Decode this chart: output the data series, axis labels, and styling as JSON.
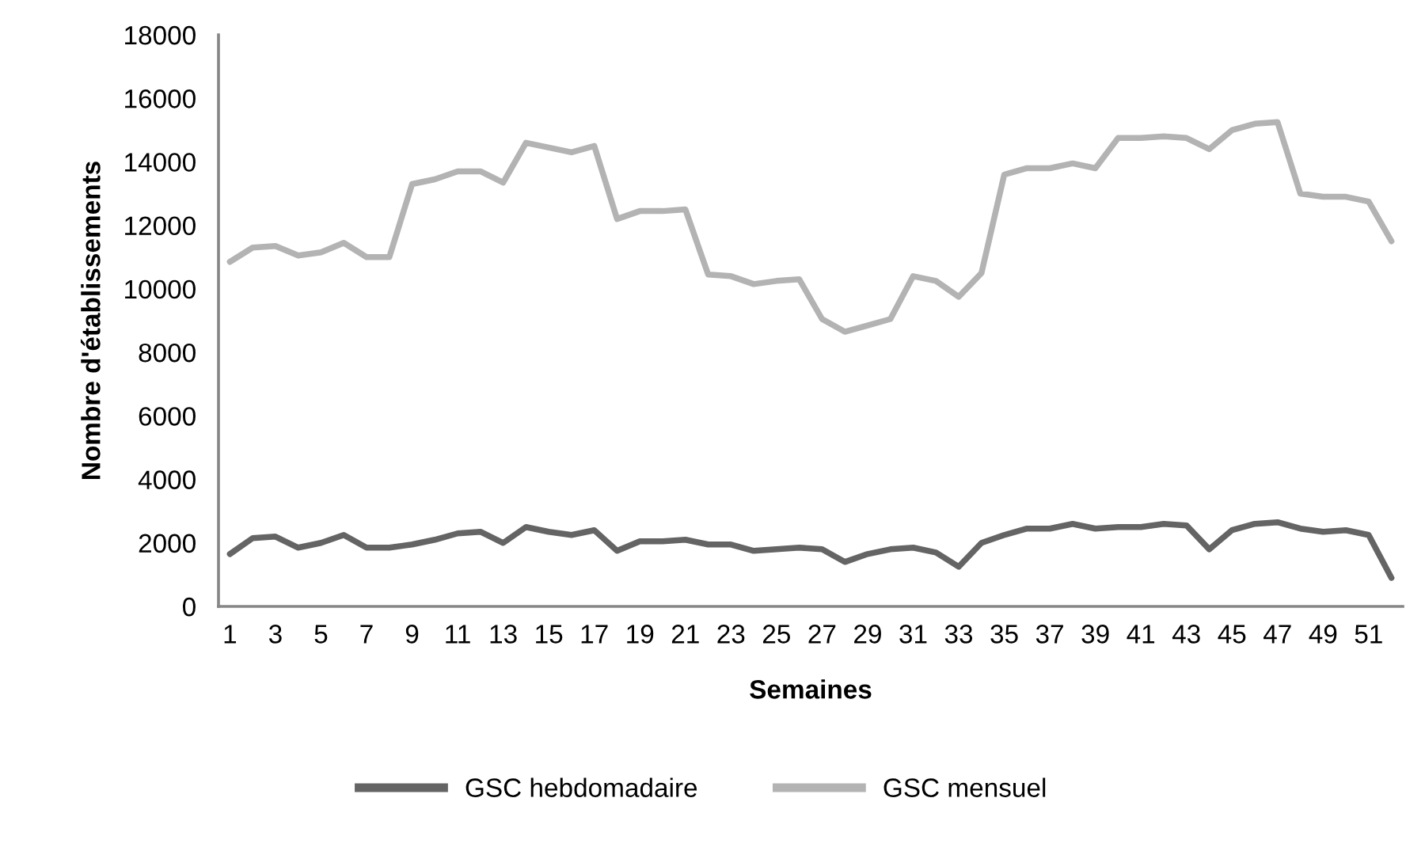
{
  "chart_data": {
    "type": "line",
    "xlabel": "Semaines",
    "ylabel": "Nombre d'établissements",
    "categories": [
      "1",
      null,
      "3",
      null,
      "5",
      null,
      "7",
      null,
      "9",
      null,
      "11",
      null,
      "13",
      null,
      "15",
      null,
      "17",
      null,
      "19",
      null,
      "21",
      null,
      "23",
      null,
      "25",
      null,
      "27",
      null,
      "29",
      null,
      "31",
      null,
      "33",
      null,
      "35",
      null,
      "37",
      null,
      "39",
      null,
      "41",
      null,
      "43",
      null,
      "45",
      null,
      "47",
      null,
      "49",
      null,
      "51",
      null
    ],
    "series": [
      {
        "name": "GSC hebdomadaire",
        "color": "#646464",
        "values": [
          1650,
          2150,
          2200,
          1850,
          2000,
          2250,
          1850,
          1850,
          1950,
          2100,
          2300,
          2350,
          2000,
          2500,
          2350,
          2250,
          2400,
          1750,
          2050,
          2050,
          2100,
          1950,
          1950,
          1750,
          1800,
          1850,
          1800,
          1400,
          1650,
          1800,
          1850,
          1700,
          1250,
          2000,
          2250,
          2450,
          2450,
          2600,
          2450,
          2500,
          2500,
          2600,
          2550,
          1800,
          2400,
          2600,
          2650,
          2450,
          2350,
          2400,
          2250,
          900
        ]
      },
      {
        "name": "GSC mensuel",
        "color": "#b3b3b3",
        "values": [
          10850,
          11300,
          11350,
          11050,
          11150,
          11450,
          11000,
          11000,
          13300,
          13450,
          13700,
          13700,
          13350,
          14600,
          14450,
          14300,
          14500,
          12200,
          12450,
          12450,
          12500,
          10450,
          10400,
          10150,
          10250,
          10300,
          9050,
          8650,
          8850,
          9050,
          10400,
          10250,
          9750,
          10500,
          13600,
          13800,
          13800,
          13950,
          13800,
          14750,
          14750,
          14800,
          14750,
          14400,
          15000,
          15200,
          15250,
          13000,
          12900,
          12900,
          12750,
          11500
        ]
      }
    ],
    "ylim": [
      0,
      18000
    ],
    "yticks": [
      0,
      2000,
      4000,
      6000,
      8000,
      10000,
      12000,
      14000,
      16000,
      18000
    ],
    "grid": false,
    "legend": "bottom",
    "marker": "none",
    "line_style": "solid"
  }
}
